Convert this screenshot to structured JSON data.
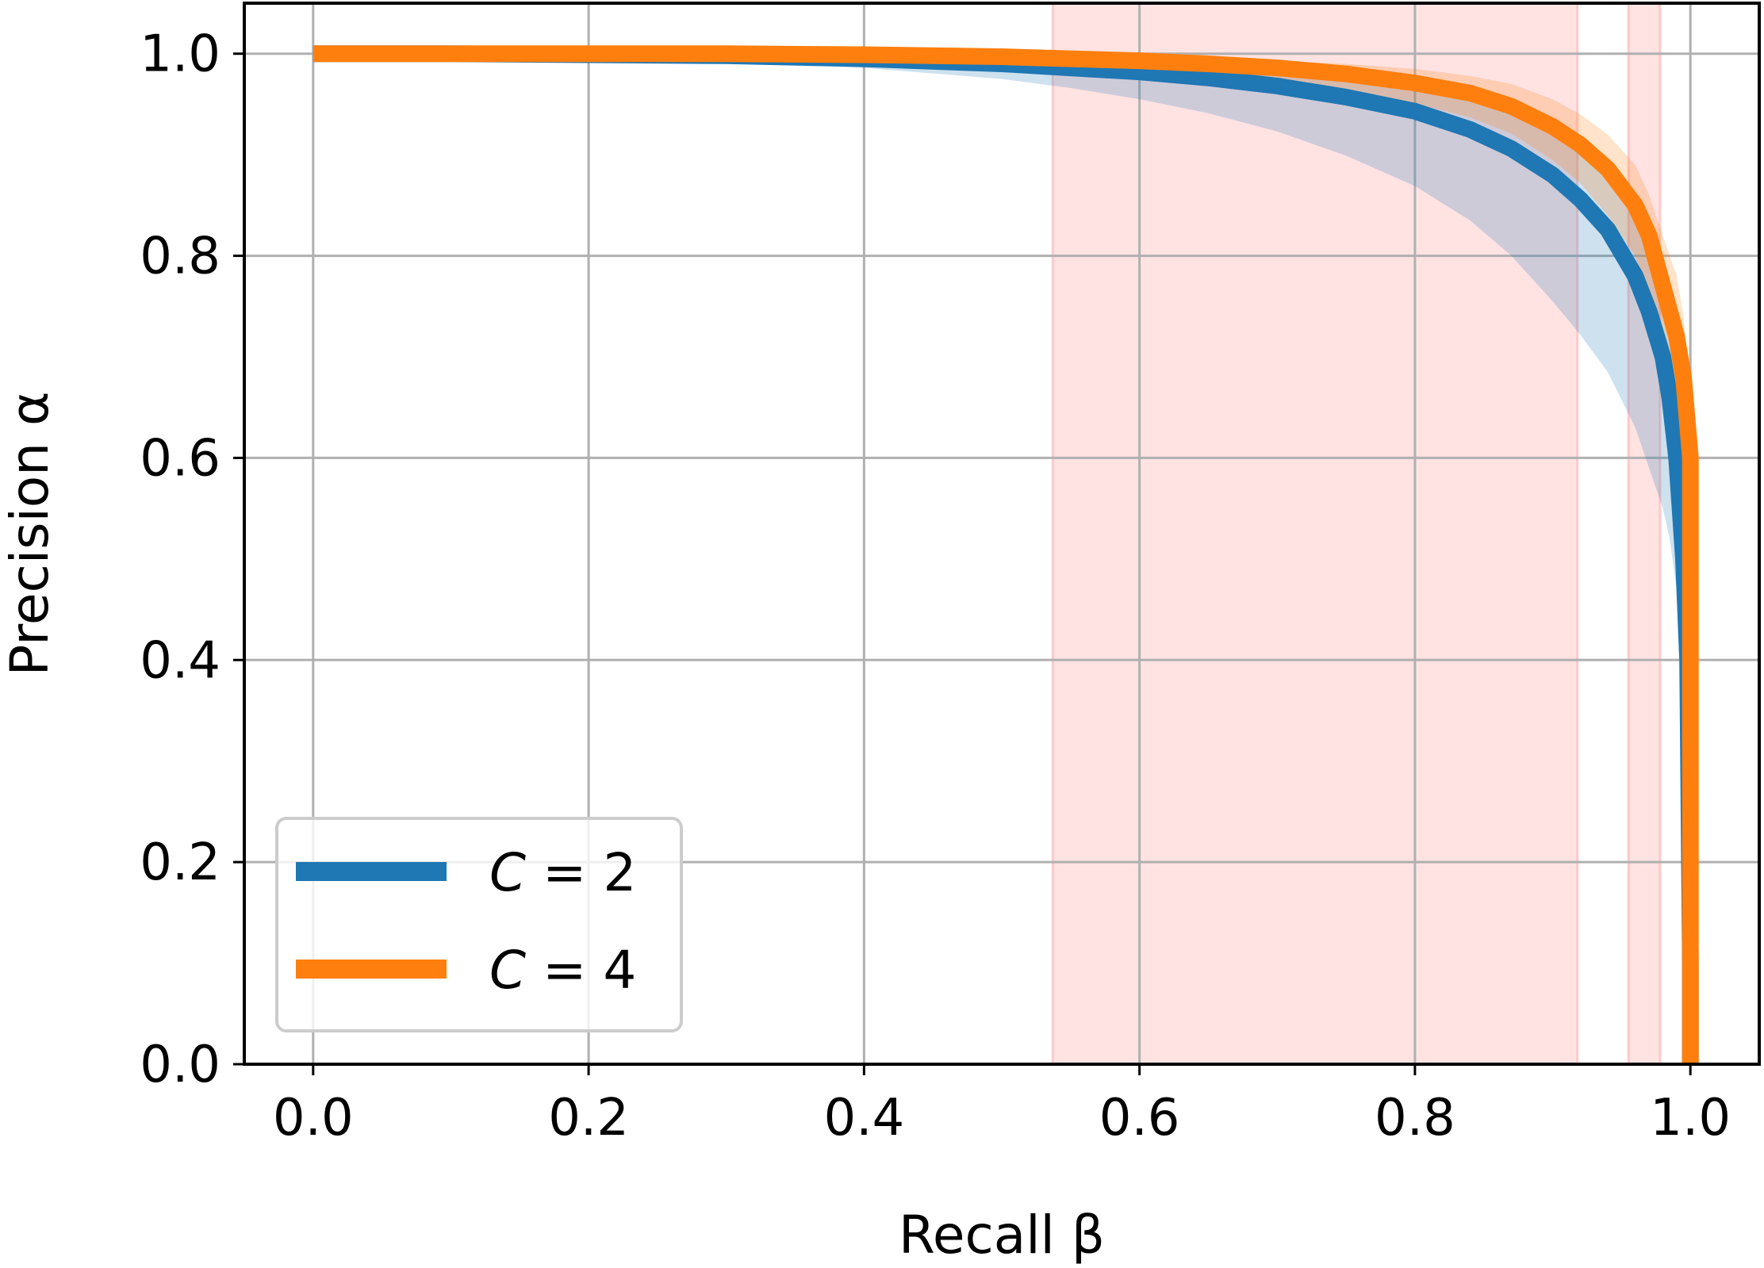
{
  "chart_data": {
    "type": "line",
    "xlabel": "Recall β",
    "ylabel": "Precision α",
    "xlim": [
      -0.05,
      1.05
    ],
    "ylim": [
      0.0,
      1.05
    ],
    "xticks": [
      "0.0",
      "0.2",
      "0.4",
      "0.6",
      "0.8",
      "1.0"
    ],
    "yticks": [
      "0.0",
      "0.2",
      "0.4",
      "0.6",
      "0.8",
      "1.0"
    ],
    "grid": true,
    "legend_position": "lower-left",
    "shaded_regions": [
      {
        "x_start": 0.537,
        "x_end": 0.918,
        "color": "#ff9999"
      },
      {
        "x_start": 0.955,
        "x_end": 0.978,
        "color": "#ff9999"
      }
    ],
    "series": [
      {
        "name": "C = 2",
        "legend_prefix": "C",
        "legend_suffix": " = 2",
        "color": "#1f77b4",
        "x": [
          0.0,
          0.1,
          0.2,
          0.3,
          0.4,
          0.5,
          0.55,
          0.6,
          0.65,
          0.7,
          0.75,
          0.8,
          0.84,
          0.87,
          0.9,
          0.92,
          0.94,
          0.96,
          0.97,
          0.98,
          0.985,
          0.99,
          0.995,
          0.998,
          1.0,
          1.0
        ],
        "y": [
          1.0,
          1.0,
          0.999,
          0.998,
          0.995,
          0.99,
          0.986,
          0.982,
          0.976,
          0.968,
          0.957,
          0.943,
          0.925,
          0.906,
          0.88,
          0.856,
          0.826,
          0.78,
          0.745,
          0.7,
          0.66,
          0.6,
          0.5,
          0.4,
          0.1,
          0.0
        ],
        "band_upper": [
          1.0,
          1.0,
          1.0,
          1.0,
          0.999,
          0.997,
          0.995,
          0.992,
          0.988,
          0.984,
          0.978,
          0.969,
          0.956,
          0.941,
          0.92,
          0.9,
          0.875,
          0.84,
          0.81,
          0.77,
          0.73,
          0.68,
          0.6,
          0.5,
          0.2,
          0.0
        ],
        "band_lower": [
          1.0,
          0.999,
          0.997,
          0.993,
          0.986,
          0.975,
          0.966,
          0.955,
          0.941,
          0.923,
          0.899,
          0.869,
          0.835,
          0.8,
          0.755,
          0.722,
          0.685,
          0.63,
          0.59,
          0.55,
          0.52,
          0.47,
          0.4,
          0.3,
          0.05,
          0.0
        ]
      },
      {
        "name": "C = 4",
        "legend_prefix": "C",
        "legend_suffix": " = 4",
        "color": "#ff7f0e",
        "x": [
          0.0,
          0.1,
          0.2,
          0.3,
          0.4,
          0.5,
          0.55,
          0.6,
          0.65,
          0.7,
          0.75,
          0.8,
          0.84,
          0.87,
          0.9,
          0.92,
          0.94,
          0.96,
          0.97,
          0.98,
          0.99,
          0.995,
          1.0,
          1.0,
          1.0
        ],
        "y": [
          1.0,
          1.0,
          1.0,
          1.0,
          0.999,
          0.997,
          0.995,
          0.993,
          0.99,
          0.986,
          0.98,
          0.971,
          0.961,
          0.948,
          0.928,
          0.91,
          0.886,
          0.85,
          0.82,
          0.77,
          0.72,
          0.68,
          0.6,
          0.5,
          0.0
        ],
        "band_upper": [
          1.0,
          1.0,
          1.0,
          1.0,
          1.0,
          0.999,
          0.998,
          0.997,
          0.995,
          0.993,
          0.99,
          0.985,
          0.978,
          0.97,
          0.955,
          0.94,
          0.92,
          0.89,
          0.86,
          0.82,
          0.78,
          0.74,
          0.66,
          0.55,
          0.0
        ],
        "band_lower": [
          1.0,
          1.0,
          0.999,
          0.998,
          0.996,
          0.993,
          0.99,
          0.986,
          0.981,
          0.975,
          0.965,
          0.951,
          0.937,
          0.921,
          0.895,
          0.872,
          0.84,
          0.8,
          0.76,
          0.72,
          0.66,
          0.62,
          0.55,
          0.45,
          0.0
        ]
      }
    ]
  }
}
